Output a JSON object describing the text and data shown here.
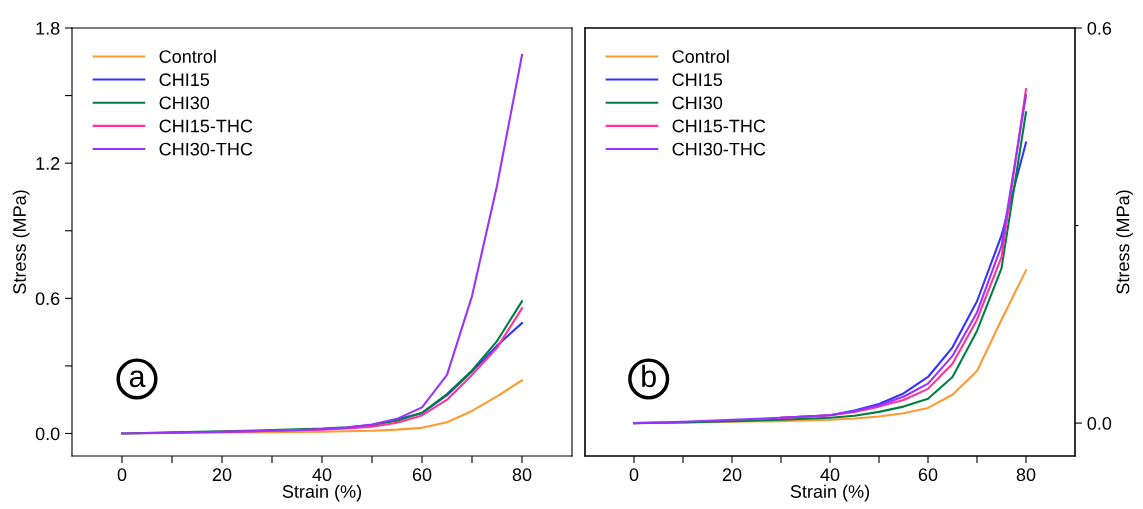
{
  "chart_data": [
    {
      "type": "line",
      "xlabel": "Strain (%)",
      "ylabel": "Stress (MPa)",
      "annotations": [
        "a"
      ],
      "x": [
        0,
        10,
        20,
        30,
        40,
        45,
        50,
        55,
        60,
        65,
        70,
        75,
        80
      ],
      "xlim": [
        -10,
        90
      ],
      "xticks": [
        0,
        {
          "value": 10,
          "label": null
        },
        20,
        {
          "value": 30,
          "label": null
        },
        40,
        {
          "value": 50,
          "label": null
        },
        60,
        {
          "value": 70,
          "label": null
        },
        80
      ],
      "ylim": [
        -0.1,
        1.8
      ],
      "yticks": [
        {
          "value": 0,
          "label": "0.0"
        },
        {
          "value": 0.3,
          "label": null
        },
        0.6,
        {
          "value": 0.9,
          "label": null
        },
        1.2,
        {
          "value": 1.5,
          "label": null
        },
        1.8
      ],
      "legend": "top left",
      "grid": false,
      "marker": "none",
      "line_style": "solid",
      "series": [
        {
          "name": "Control",
          "color": "#ff9933",
          "values": [
            0,
            0.002,
            0.004,
            0.006,
            0.008,
            0.01,
            0.012,
            0.017,
            0.025,
            0.05,
            0.1,
            0.165,
            0.236
          ]
        },
        {
          "name": "CHI15",
          "color": "#3333ff",
          "x": [
            50,
            60,
            65,
            70,
            75,
            80
          ],
          "values": [
            0.036,
            0.09,
            0.17,
            0.275,
            0.39,
            0.49
          ]
        },
        {
          "name": "CHI30",
          "color": "#008040",
          "values": [
            0,
            0.005,
            0.01,
            0.015,
            0.022,
            0.028,
            0.038,
            0.057,
            0.092,
            0.175,
            0.28,
            0.41,
            0.587
          ]
        },
        {
          "name": "CHI15-THC",
          "color": "#ff3399",
          "x": [
            20,
            30,
            40,
            45,
            50,
            55,
            60,
            65,
            70,
            75,
            80
          ],
          "values": [
            0.007,
            0.011,
            0.017,
            0.022,
            0.03,
            0.048,
            0.08,
            0.15,
            0.26,
            0.38,
            0.556
          ]
        },
        {
          "name": "CHI30-THC",
          "color": "#9933ff",
          "values": [
            0,
            0.003,
            0.007,
            0.012,
            0.019,
            0.026,
            0.04,
            0.065,
            0.116,
            0.26,
            0.61,
            1.1,
            1.68
          ]
        }
      ]
    },
    {
      "type": "line",
      "xlabel": "Strain (%)",
      "y2label": "Stress (MPa)",
      "annotations": [
        "b"
      ],
      "x": [
        0,
        10,
        20,
        30,
        40,
        45,
        50,
        55,
        60,
        65,
        70,
        75,
        80
      ],
      "xlim": [
        -10,
        90
      ],
      "xticks": [
        0,
        {
          "value": 10,
          "label": null
        },
        20,
        {
          "value": 30,
          "label": null
        },
        40,
        {
          "value": 50,
          "label": null
        },
        60,
        {
          "value": 70,
          "label": null
        },
        80
      ],
      "y2lim": [
        -0.05,
        0.6
      ],
      "y2ticks": [
        {
          "value": 0,
          "label": "0.0"
        },
        {
          "value": 0.3,
          "label": null
        },
        0.6
      ],
      "legend": "top left",
      "grid": false,
      "marker": "none",
      "line_style": "solid",
      "series": [
        {
          "name": "Control",
          "color": "#ff9933",
          "axis": "y2",
          "values": [
            0,
            0.001,
            0.002,
            0.003,
            0.005,
            0.007,
            0.01,
            0.015,
            0.023,
            0.043,
            0.079,
            0.157,
            0.232
          ]
        },
        {
          "name": "CHI15",
          "color": "#3333ff",
          "axis": "y2",
          "x": [
            30,
            40,
            45,
            50,
            55,
            60,
            65,
            70,
            75,
            80
          ],
          "values": [
            0.008,
            0.012,
            0.019,
            0.029,
            0.045,
            0.07,
            0.115,
            0.185,
            0.285,
            0.426
          ]
        },
        {
          "name": "CHI30",
          "color": "#008040",
          "axis": "y2",
          "values": [
            0,
            0.001,
            0.003,
            0.005,
            0.008,
            0.011,
            0.017,
            0.025,
            0.037,
            0.07,
            0.14,
            0.235,
            0.472
          ]
        },
        {
          "name": "CHI15-THC",
          "color": "#ff3399",
          "axis": "y2",
          "x": [
            30,
            40,
            45,
            50,
            55,
            60,
            65,
            70,
            75,
            80
          ],
          "values": [
            0.008,
            0.012,
            0.017,
            0.025,
            0.035,
            0.052,
            0.09,
            0.157,
            0.252,
            0.507
          ]
        },
        {
          "name": "CHI30-THC",
          "color": "#9933ff",
          "axis": "y2",
          "values": [
            0,
            0.002,
            0.005,
            0.008,
            0.012,
            0.018,
            0.027,
            0.04,
            0.06,
            0.102,
            0.168,
            0.269,
            0.498
          ]
        }
      ]
    }
  ]
}
